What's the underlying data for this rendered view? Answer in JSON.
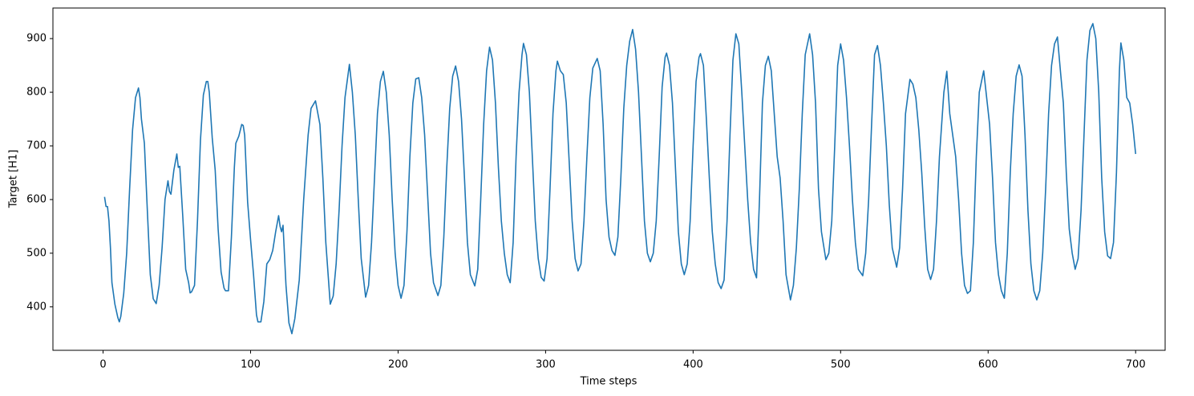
{
  "chart_data": {
    "type": "line",
    "xlabel": "Time steps",
    "ylabel": "Target [H1]",
    "color": "#1f77b4",
    "xlim": [
      -34,
      720
    ],
    "ylim": [
      319,
      957
    ],
    "xticks": [
      0,
      100,
      200,
      300,
      400,
      500,
      600,
      700
    ],
    "yticks": [
      400,
      500,
      600,
      700,
      800,
      900
    ],
    "x": [
      1,
      2,
      3,
      4,
      5,
      6,
      8,
      10,
      11,
      12,
      14,
      16,
      18,
      20,
      22,
      24,
      25,
      26,
      28,
      30,
      32,
      34,
      36,
      38,
      40,
      42,
      44,
      45,
      46,
      48,
      50,
      51,
      52,
      54,
      56,
      58,
      59,
      60,
      62,
      64,
      66,
      68,
      70,
      71,
      72,
      74,
      76,
      78,
      80,
      82,
      83,
      85,
      87,
      89,
      90,
      92,
      94,
      95,
      96,
      98,
      100,
      102,
      104,
      105,
      107,
      109,
      111,
      113,
      115,
      117,
      119,
      120,
      121,
      122,
      124,
      126,
      128,
      130,
      133,
      136,
      139,
      141,
      144,
      147,
      149,
      151,
      154,
      156,
      158,
      160,
      162,
      164,
      167,
      169,
      171,
      173,
      175,
      178,
      180,
      182,
      184,
      186,
      188,
      190,
      192,
      194,
      196,
      198,
      200,
      202,
      204,
      206,
      208,
      210,
      212,
      214,
      216,
      218,
      220,
      222,
      224,
      227,
      229,
      231,
      233,
      235,
      237,
      239,
      241,
      243,
      245,
      247,
      249,
      252,
      254,
      256,
      258,
      260,
      262,
      264,
      266,
      268,
      270,
      272,
      274,
      276,
      278,
      280,
      282,
      284,
      285,
      287,
      289,
      291,
      293,
      295,
      297,
      299,
      301,
      303,
      305,
      307,
      308,
      310,
      312,
      314,
      316,
      318,
      320,
      322,
      324,
      326,
      328,
      330,
      332,
      335,
      337,
      339,
      341,
      343,
      345,
      347,
      349,
      351,
      353,
      355,
      357,
      359,
      361,
      363,
      365,
      367,
      369,
      371,
      373,
      375,
      377,
      379,
      381,
      382,
      384,
      386,
      388,
      390,
      392,
      394,
      396,
      398,
      400,
      402,
      404,
      405,
      407,
      409,
      411,
      413,
      415,
      417,
      419,
      421,
      423,
      425,
      427,
      429,
      431,
      433,
      435,
      437,
      439,
      441,
      443,
      445,
      447,
      449,
      451,
      453,
      455,
      457,
      459,
      461,
      463,
      466,
      468,
      470,
      472,
      474,
      476,
      479,
      481,
      483,
      485,
      487,
      490,
      492,
      494,
      496,
      498,
      500,
      502,
      504,
      506,
      508,
      510,
      512,
      515,
      517,
      519,
      521,
      523,
      525,
      527,
      529,
      531,
      533,
      535,
      538,
      540,
      542,
      544,
      547,
      549,
      551,
      553,
      555,
      557,
      559,
      561,
      563,
      565,
      567,
      570,
      572,
      574,
      576,
      578,
      580,
      582,
      584,
      586,
      588,
      590,
      592,
      594,
      597,
      599,
      601,
      603,
      605,
      607,
      609,
      611,
      613,
      615,
      617,
      619,
      621,
      623,
      625,
      627,
      629,
      631,
      633,
      635,
      637,
      639,
      641,
      643,
      645,
      647,
      649,
      651,
      653,
      655,
      657,
      659,
      661,
      663,
      665,
      667,
      669,
      671,
      673,
      675,
      677,
      679,
      681,
      683,
      685,
      687,
      689,
      690,
      692,
      694,
      696,
      698,
      700
    ],
    "values": [
      605,
      587,
      587,
      560,
      510,
      445,
      405,
      380,
      372,
      382,
      425,
      500,
      620,
      730,
      790,
      808,
      790,
      750,
      705,
      580,
      460,
      415,
      406,
      440,
      510,
      600,
      635,
      615,
      610,
      655,
      685,
      660,
      662,
      570,
      470,
      445,
      426,
      428,
      440,
      560,
      710,
      795,
      820,
      820,
      800,
      715,
      655,
      545,
      465,
      435,
      430,
      430,
      530,
      660,
      705,
      718,
      740,
      738,
      720,
      595,
      525,
      460,
      385,
      372,
      372,
      410,
      480,
      488,
      505,
      540,
      570,
      550,
      540,
      552,
      440,
      370,
      350,
      378,
      450,
      600,
      720,
      770,
      784,
      740,
      640,
      520,
      405,
      420,
      480,
      580,
      700,
      790,
      852,
      800,
      720,
      600,
      490,
      418,
      440,
      520,
      640,
      760,
      820,
      839,
      800,
      720,
      600,
      500,
      440,
      416,
      440,
      540,
      680,
      780,
      825,
      827,
      790,
      720,
      610,
      500,
      445,
      421,
      440,
      530,
      660,
      770,
      830,
      849,
      820,
      750,
      640,
      520,
      460,
      439,
      470,
      600,
      740,
      840,
      884,
      860,
      780,
      660,
      560,
      500,
      460,
      445,
      520,
      680,
      800,
      870,
      891,
      870,
      800,
      680,
      560,
      490,
      455,
      448,
      490,
      620,
      760,
      840,
      858,
      840,
      833,
      780,
      670,
      560,
      490,
      467,
      480,
      560,
      680,
      790,
      845,
      863,
      840,
      740,
      600,
      530,
      505,
      496,
      530,
      640,
      770,
      850,
      895,
      917,
      880,
      800,
      680,
      560,
      500,
      484,
      500,
      560,
      680,
      810,
      865,
      873,
      850,
      780,
      660,
      540,
      480,
      460,
      480,
      560,
      700,
      820,
      865,
      872,
      850,
      750,
      640,
      540,
      480,
      445,
      434,
      450,
      560,
      720,
      860,
      909,
      890,
      800,
      700,
      600,
      520,
      470,
      454,
      600,
      780,
      850,
      867,
      840,
      760,
      680,
      640,
      560,
      460,
      413,
      440,
      510,
      620,
      760,
      870,
      909,
      870,
      780,
      620,
      540,
      488,
      500,
      560,
      700,
      850,
      890,
      860,
      790,
      700,
      600,
      520,
      470,
      458,
      500,
      600,
      740,
      870,
      887,
      850,
      780,
      700,
      590,
      510,
      474,
      510,
      620,
      760,
      824,
      815,
      790,
      730,
      650,
      550,
      470,
      451,
      470,
      560,
      680,
      800,
      839,
      760,
      720,
      680,
      600,
      500,
      440,
      425,
      430,
      520,
      680,
      800,
      840,
      790,
      740,
      640,
      520,
      460,
      430,
      416,
      500,
      650,
      760,
      830,
      851,
      830,
      720,
      580,
      480,
      430,
      413,
      430,
      500,
      620,
      760,
      850,
      890,
      903,
      840,
      780,
      650,
      545,
      500,
      470,
      490,
      580,
      720,
      860,
      915,
      928,
      900,
      800,
      640,
      540,
      495,
      490,
      520,
      650,
      840,
      892,
      860,
      790,
      780,
      740,
      685
    ]
  }
}
